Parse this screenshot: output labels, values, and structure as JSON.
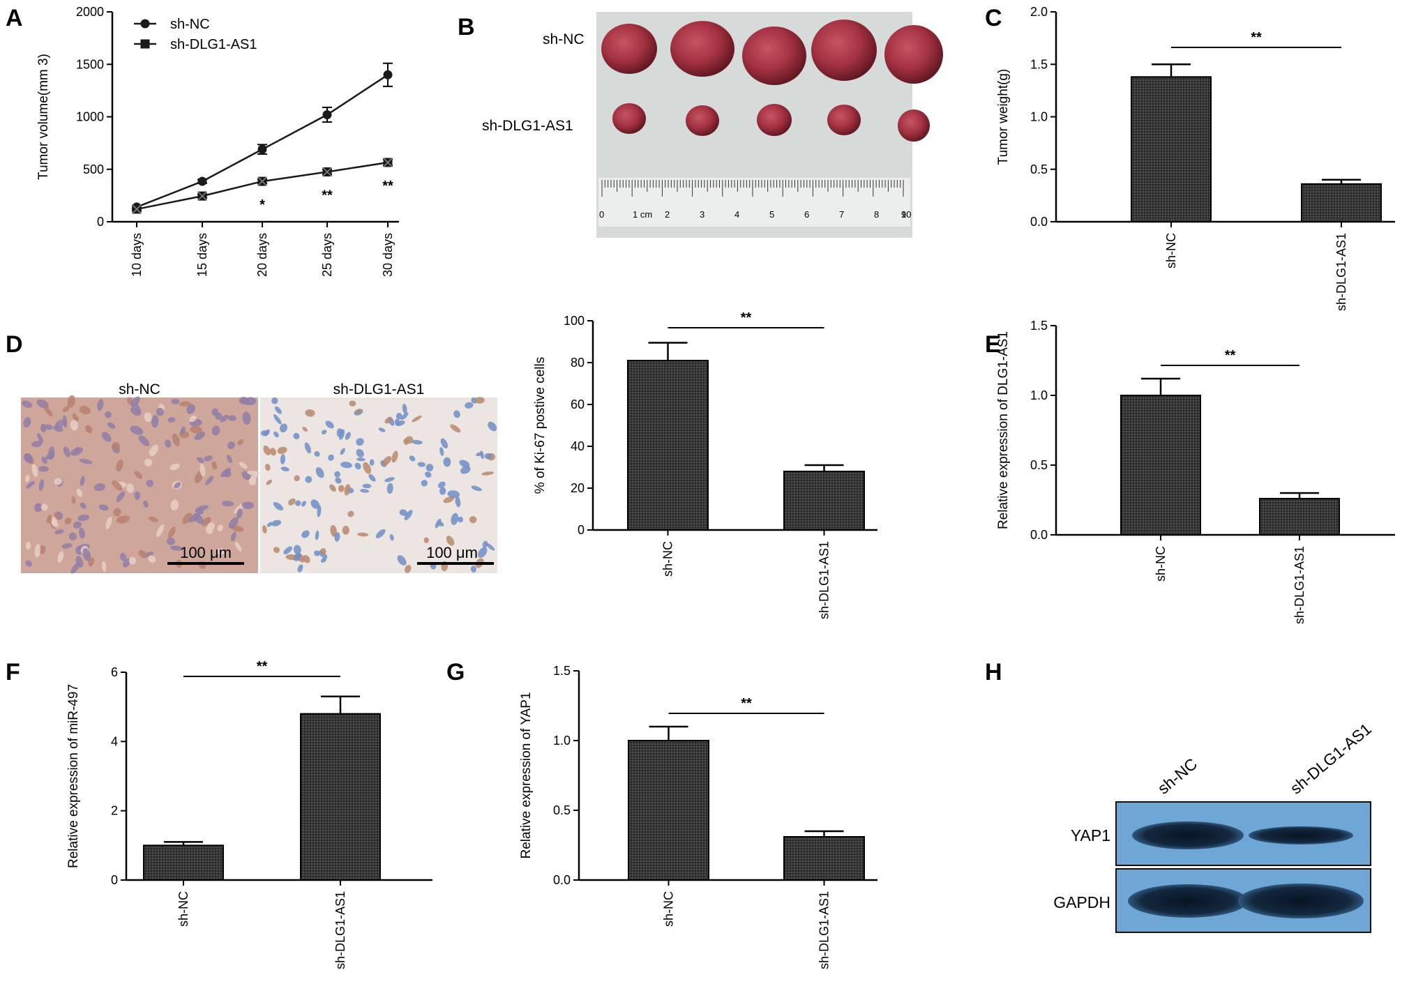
{
  "panel_letters": [
    "A",
    "B",
    "C",
    "D",
    "E",
    "F",
    "G",
    "H"
  ],
  "colors": {
    "bar_fill": "#3a3a3a",
    "line": "#1a1a1a",
    "photo_bg": "#d6dad9",
    "tumor": "#a8343f",
    "blot_bg": "#6ea6d6",
    "band": "#0f2238",
    "ihc_nc": "#cfa79a",
    "ihc_dlg": "#ece5e2"
  },
  "photo_b": {
    "row_labels": [
      "sh-NC",
      "sh-DLG1-AS1"
    ],
    "ruler_unit": "1 cm",
    "ruler_numbers": [
      "0",
      "2",
      "3",
      "4",
      "5",
      "6",
      "7",
      "8",
      "9",
      "10"
    ]
  },
  "micrographs_d": {
    "titles": [
      "sh-NC",
      "sh-DLG1-AS1"
    ],
    "scale_bar_text": "100 μm"
  },
  "western_h": {
    "lane_labels": [
      "sh-NC",
      "sh-DLG1-AS1"
    ],
    "row_labels": [
      "YAP1",
      "GAPDH"
    ]
  },
  "chart_data": [
    {
      "panel": "A",
      "type": "line",
      "categories": [
        "10 days",
        "15 days",
        "20 days",
        "25 days",
        "30 days"
      ],
      "series": [
        {
          "name": "sh-NC",
          "marker": "circle",
          "values": [
            140,
            385,
            690,
            1020,
            1400
          ],
          "errors": [
            15,
            18,
            45,
            70,
            110
          ]
        },
        {
          "name": "sh-DLG1-AS1",
          "marker": "square-x",
          "values": [
            120,
            245,
            385,
            475,
            565
          ],
          "errors": [
            12,
            15,
            20,
            25,
            30
          ]
        }
      ],
      "significance": [
        "",
        "",
        "*",
        "**",
        "**"
      ],
      "xlabel": "",
      "ylabel": "Tumor volume(mm 3)",
      "ylim": [
        0,
        2000
      ],
      "yticks": [
        0,
        500,
        1000,
        1500,
        2000
      ],
      "legend": "top-left"
    },
    {
      "panel": "C",
      "type": "bar",
      "categories": [
        "sh-NC",
        "sh-DLG1-AS1"
      ],
      "values": [
        1.38,
        0.36
      ],
      "errors": [
        0.12,
        0.04
      ],
      "ylabel": "Tumor weight(g)",
      "ylim": [
        0,
        2.0
      ],
      "yticks": [
        "0.0",
        "0.5",
        "1.0",
        "1.5",
        "2.0"
      ],
      "significance": "**"
    },
    {
      "panel": "D",
      "type": "bar",
      "categories": [
        "sh-NC",
        "sh-DLG1-AS1"
      ],
      "values": [
        81,
        28
      ],
      "errors": [
        8.5,
        3
      ],
      "ylabel": "% of Ki-67 postive cells",
      "ylim": [
        0,
        100
      ],
      "yticks": [
        "0",
        "20",
        "40",
        "60",
        "80",
        "100"
      ],
      "significance": "**"
    },
    {
      "panel": "E",
      "type": "bar",
      "categories": [
        "sh-NC",
        "sh-DLG1-AS1"
      ],
      "values": [
        1.0,
        0.26
      ],
      "errors": [
        0.12,
        0.04
      ],
      "ylabel": "Relative expression of DLG1-AS1",
      "ylim": [
        0,
        1.5
      ],
      "yticks": [
        "0.0",
        "0.5",
        "1.0",
        "1.5"
      ],
      "significance": "**"
    },
    {
      "panel": "F",
      "type": "bar",
      "categories": [
        "sh-NC",
        "sh-DLG1-AS1"
      ],
      "values": [
        1.0,
        4.8
      ],
      "errors": [
        0.1,
        0.5
      ],
      "ylabel": "Relative expression of miR-497",
      "ylim": [
        0,
        6
      ],
      "yticks": [
        "0",
        "2",
        "4",
        "6"
      ],
      "significance": "**"
    },
    {
      "panel": "G",
      "type": "bar",
      "categories": [
        "sh-NC",
        "sh-DLG1-AS1"
      ],
      "values": [
        1.0,
        0.31
      ],
      "errors": [
        0.1,
        0.04
      ],
      "ylabel": "Relative expression of YAP1",
      "ylim": [
        0,
        1.5
      ],
      "yticks": [
        "0.0",
        "0.5",
        "1.0",
        "1.5"
      ],
      "significance": "**"
    }
  ]
}
